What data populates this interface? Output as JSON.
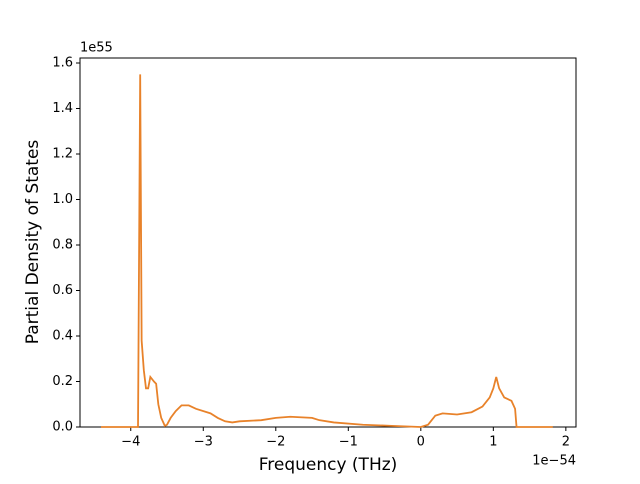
{
  "chart_data": {
    "type": "line",
    "xlabel": "Frequency (THz)",
    "ylabel": "Partial Density of States",
    "x_offset_label": "1e−54",
    "y_offset_label": "1e55",
    "x": [
      -4.41,
      -3.9,
      -3.87,
      -3.85,
      -3.82,
      -3.79,
      -3.76,
      -3.73,
      -3.68,
      -3.65,
      -3.62,
      -3.58,
      -3.53,
      -3.5,
      -3.45,
      -3.38,
      -3.3,
      -3.2,
      -3.1,
      -2.9,
      -2.8,
      -2.7,
      -2.6,
      -2.5,
      -2.2,
      -2.0,
      -1.8,
      -1.5,
      -1.4,
      -1.2,
      -0.8,
      -0.4,
      0.0,
      0.1,
      0.2,
      0.3,
      0.5,
      0.7,
      0.85,
      0.95,
      1.0,
      1.04,
      1.08,
      1.15,
      1.25,
      1.3,
      1.32,
      1.82
    ],
    "series": [
      {
        "color": "#e8822a",
        "values": [
          0,
          0,
          1.55,
          0.38,
          0.25,
          0.17,
          0.17,
          0.22,
          0.2,
          0.19,
          0.1,
          0.04,
          0.005,
          0.01,
          0.04,
          0.07,
          0.095,
          0.095,
          0.08,
          0.06,
          0.04,
          0.025,
          0.02,
          0.025,
          0.03,
          0.04,
          0.045,
          0.04,
          0.03,
          0.02,
          0.01,
          0.005,
          0.0,
          0.01,
          0.05,
          0.06,
          0.055,
          0.065,
          0.09,
          0.13,
          0.17,
          0.22,
          0.17,
          0.13,
          0.115,
          0.08,
          0,
          0
        ]
      }
    ],
    "xlim": [
      -4.7,
      2.14
    ],
    "ylim": [
      0,
      1.622
    ],
    "xticks": [
      {
        "value": -4,
        "label": "−4"
      },
      {
        "value": -3,
        "label": "−3"
      },
      {
        "value": -2,
        "label": "−2"
      },
      {
        "value": -1,
        "label": "−1"
      },
      0,
      1,
      2
    ],
    "yticks": [
      {
        "value": 0,
        "label": "0.0"
      },
      {
        "value": 0.2,
        "label": "0.2"
      },
      {
        "value": 0.4,
        "label": "0.4"
      },
      {
        "value": 0.6,
        "label": "0.6"
      },
      {
        "value": 0.8,
        "label": "0.8"
      },
      {
        "value": 1.0,
        "label": "1.0"
      },
      {
        "value": 1.2,
        "label": "1.2"
      },
      {
        "value": 1.4,
        "label": "1.4"
      },
      {
        "value": 1.6,
        "label": "1.6"
      }
    ]
  }
}
